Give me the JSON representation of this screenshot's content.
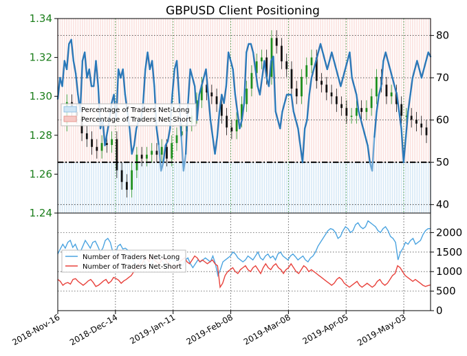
{
  "chart_data": {
    "type": "line",
    "title": "GBPUSD Client Positioning",
    "x_labels": [
      "2018-Nov-16",
      "2018-Dec-14",
      "2019-Jan-11",
      "2019-Feb-08",
      "2019-Mar-08",
      "2019-Apr-05",
      "2019-May-03"
    ],
    "x_range": [
      "2018-Nov-16",
      "2019-May-16"
    ],
    "top_panel": {
      "left_axis": {
        "ylim": [
          1.24,
          1.34
        ],
        "ticks": [
          "1.24",
          "1.26",
          "1.28",
          "1.30",
          "1.32",
          "1.34"
        ]
      },
      "right_axis": {
        "ylim": [
          38,
          84
        ],
        "ticks": [
          "40",
          "50",
          "60",
          "70",
          "80"
        ]
      },
      "reference_line": 50,
      "legend": {
        "position": "center-left",
        "entries": [
          "Percentage of Traders Net-Long",
          "Percentage of Traders Net-Short"
        ]
      },
      "price_series": [
        1.286,
        1.297,
        1.292,
        1.29,
        1.281,
        1.278,
        1.274,
        1.272,
        1.276,
        1.275,
        1.278,
        1.262,
        1.256,
        1.252,
        1.262,
        1.27,
        1.268,
        1.27,
        1.272,
        1.27,
        1.274,
        1.268,
        1.276,
        1.28,
        1.282,
        1.286,
        1.29,
        1.298,
        1.306,
        1.302,
        1.3,
        1.296,
        1.29,
        1.284,
        1.282,
        1.288,
        1.296,
        1.304,
        1.312,
        1.318,
        1.32,
        1.31,
        1.33,
        1.326,
        1.318,
        1.314,
        1.304,
        1.3,
        1.31,
        1.316,
        1.32,
        1.308,
        1.306,
        1.302,
        1.3,
        1.296,
        1.294,
        1.29,
        1.29,
        1.294,
        1.292,
        1.294,
        1.3,
        1.31,
        1.306,
        1.3,
        1.302,
        1.296,
        1.29,
        1.29,
        1.288,
        1.286,
        1.284,
        1.28
      ],
      "net_long_percent": [
        65,
        70,
        68,
        74,
        72,
        78,
        79,
        74,
        71,
        66,
        62,
        74,
        76,
        70,
        72,
        68,
        68,
        74,
        68,
        58,
        60,
        54,
        57,
        60,
        64,
        66,
        60,
        72,
        70,
        72,
        66,
        62,
        58,
        52,
        54,
        58,
        60,
        60,
        64,
        72,
        76,
        72,
        74,
        68,
        58,
        54,
        48,
        50,
        54,
        55,
        58,
        66,
        72,
        74,
        66,
        56,
        48,
        52,
        64,
        72,
        70,
        68,
        60,
        66,
        68,
        70,
        72,
        66,
        60,
        56,
        52,
        56,
        62,
        66,
        64,
        68,
        76,
        74,
        72,
        66,
        62,
        58,
        60,
        64,
        76,
        78,
        78,
        76,
        72,
        68,
        66,
        70,
        74,
        70,
        68,
        74,
        75,
        62,
        60,
        58,
        62,
        64,
        66,
        66,
        66,
        62,
        60,
        58,
        54,
        50,
        58,
        60,
        66,
        70,
        72,
        74,
        76,
        78,
        76,
        74,
        72,
        74,
        76,
        74,
        72,
        70,
        68,
        70,
        72,
        74,
        76,
        70,
        68,
        66,
        62,
        60,
        58,
        56,
        54,
        50,
        48,
        56,
        62,
        66,
        68,
        74,
        76,
        74,
        72,
        70,
        68,
        66,
        62,
        58,
        50,
        56,
        62,
        66,
        70,
        72,
        74,
        72,
        70,
        72,
        74,
        76,
        75
      ],
      "net_short_percent_segments": "shown where net-long is below 50"
    },
    "bottom_panel": {
      "right_axis": {
        "ylim": [
          0,
          2500
        ],
        "ticks": [
          "0",
          "500",
          "1000",
          "1500",
          "2000"
        ]
      },
      "legend": {
        "position": "center-left",
        "entries": [
          "Number of Traders Net-Long",
          "Number of Traders Net-Short"
        ]
      },
      "series": [
        {
          "name": "Number of Traders Net-Long",
          "color": "#4aa3e0",
          "values": [
            1450,
            1580,
            1700,
            1600,
            1750,
            1800,
            1620,
            1700,
            1550,
            1500,
            1650,
            1800,
            1700,
            1600,
            1750,
            1780,
            1650,
            1500,
            1600,
            1800,
            1850,
            1750,
            1500,
            1450,
            1650,
            1700,
            1580,
            1600,
            1550,
            1500,
            1300,
            1200,
            1150,
            1250,
            1350,
            1200,
            1150,
            1100,
            1300,
            1350,
            1400,
            1300,
            1250,
            1100,
            1200,
            1300,
            1350,
            1250,
            1300,
            1200,
            1150,
            1300,
            1350,
            1200,
            1100,
            1200,
            1300,
            1250,
            1300,
            1350,
            1300,
            1250,
            1400,
            1200,
            900,
            1050,
            1250,
            1300,
            1350,
            1400,
            1500,
            1450,
            1350,
            1300,
            1250,
            1300,
            1400,
            1350,
            1300,
            1400,
            1500,
            1350,
            1300,
            1400,
            1450,
            1350,
            1400,
            1300,
            1450,
            1500,
            1400,
            1350,
            1300,
            1400,
            1450,
            1380,
            1300,
            1350,
            1400,
            1300,
            1250,
            1350,
            1400,
            1500,
            1650,
            1750,
            1850,
            1950,
            2050,
            2100,
            2080,
            2000,
            1850,
            1900,
            2050,
            2150,
            2100,
            2000,
            2050,
            2200,
            2250,
            2150,
            2100,
            2150,
            2300,
            2250,
            2200,
            2150,
            2050,
            2000,
            2100,
            2150,
            2050,
            1900,
            1850,
            1750,
            1300,
            1500,
            1600,
            1750,
            1700,
            1800,
            1850,
            1700,
            1750,
            1800,
            1950,
            2050,
            2100,
            2100
          ]
        },
        {
          "name": "Number of Traders Net-Short",
          "color": "#e8403a",
          "values": [
            800,
            750,
            650,
            700,
            720,
            680,
            800,
            820,
            750,
            700,
            650,
            700,
            760,
            800,
            720,
            620,
            650,
            700,
            760,
            800,
            700,
            750,
            850,
            820,
            780,
            700,
            760,
            800,
            850,
            900,
            1000,
            1100,
            1200,
            1150,
            1300,
            1350,
            1250,
            1400,
            1300,
            1250,
            1200,
            1300,
            1350,
            1250,
            1200,
            1100,
            1050,
            1150,
            1250,
            1300,
            1350,
            1250,
            1200,
            1300,
            1400,
            1350,
            1250,
            1300,
            1250,
            1200,
            1250,
            1300,
            1200,
            1150,
            600,
            700,
            900,
            1000,
            1050,
            1100,
            1000,
            950,
            1050,
            1100,
            1150,
            1050,
            1000,
            1100,
            1150,
            1050,
            950,
            1100,
            1200,
            1100,
            1050,
            1150,
            1200,
            1100,
            1050,
            950,
            1050,
            1100,
            1200,
            1100,
            1000,
            950,
            1050,
            1150,
            1100,
            1000,
            1050,
            1000,
            950,
            900,
            850,
            800,
            750,
            700,
            650,
            700,
            800,
            850,
            800,
            700,
            650,
            600,
            650,
            700,
            750,
            650,
            600,
            650,
            700,
            650,
            600,
            650,
            750,
            800,
            700,
            650,
            700,
            800,
            900,
            950,
            1150,
            1100,
            1000,
            900,
            850,
            800,
            750,
            800,
            750,
            700,
            650,
            620,
            640,
            660
          ]
        }
      ]
    }
  }
}
